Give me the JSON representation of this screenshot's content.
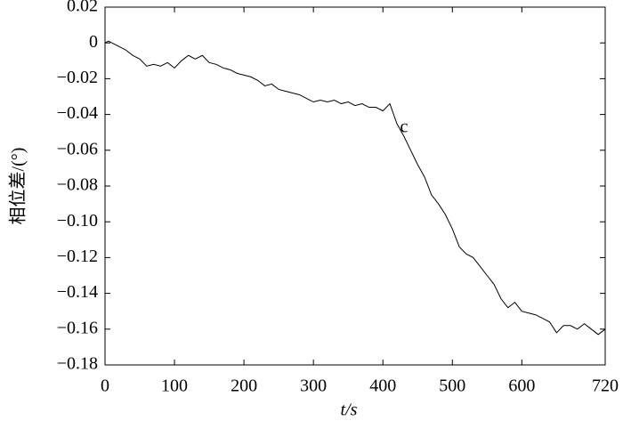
{
  "chart_data": {
    "type": "line",
    "y_label": "相位差/(°)",
    "x_label": "t/s",
    "annotation": "c",
    "x": [
      0,
      5,
      10,
      20,
      30,
      40,
      50,
      60,
      70,
      80,
      90,
      100,
      110,
      120,
      130,
      140,
      150,
      160,
      170,
      180,
      190,
      200,
      210,
      220,
      230,
      240,
      250,
      260,
      270,
      280,
      290,
      300,
      310,
      320,
      330,
      340,
      350,
      360,
      370,
      380,
      390,
      400,
      410,
      420,
      430,
      440,
      450,
      460,
      470,
      480,
      490,
      500,
      510,
      520,
      530,
      540,
      550,
      560,
      570,
      580,
      590,
      600,
      610,
      620,
      630,
      640,
      650,
      660,
      670,
      680,
      690,
      700,
      710,
      720
    ],
    "series": [
      {
        "color": "#000000",
        "values": [
          0.0,
          0.001,
          0.0,
          -0.002,
          -0.004,
          -0.007,
          -0.009,
          -0.013,
          -0.012,
          -0.013,
          -0.011,
          -0.014,
          -0.01,
          -0.007,
          -0.009,
          -0.007,
          -0.011,
          -0.012,
          -0.014,
          -0.015,
          -0.017,
          -0.018,
          -0.019,
          -0.021,
          -0.024,
          -0.023,
          -0.026,
          -0.027,
          -0.028,
          -0.029,
          -0.031,
          -0.033,
          -0.032,
          -0.033,
          -0.032,
          -0.034,
          -0.033,
          -0.035,
          -0.034,
          -0.036,
          -0.036,
          -0.038,
          -0.034,
          -0.045,
          -0.052,
          -0.06,
          -0.068,
          -0.075,
          -0.085,
          -0.09,
          -0.096,
          -0.104,
          -0.114,
          -0.118,
          -0.12,
          -0.125,
          -0.13,
          -0.135,
          -0.143,
          -0.148,
          -0.145,
          -0.15,
          -0.151,
          -0.152,
          -0.154,
          -0.156,
          -0.162,
          -0.158,
          -0.158,
          -0.16,
          -0.157,
          -0.16,
          -0.163,
          -0.16
        ]
      }
    ],
    "xlim": [
      0,
      720
    ],
    "xticks": [
      0,
      100,
      200,
      300,
      400,
      500,
      600,
      720
    ],
    "ylim": [
      -0.18,
      0.02
    ],
    "yticks": [
      {
        "value": -0.18,
        "label": "−0.18"
      },
      {
        "value": -0.16,
        "label": "−0.16"
      },
      {
        "value": -0.14,
        "label": "−0.14"
      },
      {
        "value": -0.12,
        "label": "−0.12"
      },
      {
        "value": -0.1,
        "label": "−0.10"
      },
      {
        "value": -0.08,
        "label": "−0.08"
      },
      {
        "value": -0.06,
        "label": "−0.06"
      },
      {
        "value": -0.04,
        "label": "−0.04"
      },
      {
        "value": -0.02,
        "label": "−0.02"
      },
      0,
      0.02
    ],
    "grid": false
  }
}
